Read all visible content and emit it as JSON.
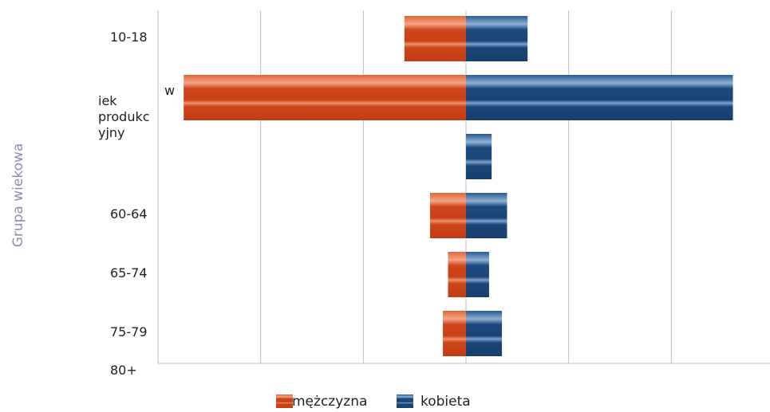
{
  "chart_data": {
    "type": "bar",
    "orientation": "horizontal",
    "stacking": "diverging",
    "title": "",
    "xlabel": "",
    "ylabel": "Grupa wiekowa",
    "categories": [
      "10-18",
      "wiek produkcyjny",
      "",
      "60-64",
      "65-74",
      "75-79"
    ],
    "category_label_lines": [
      [
        "10-18"
      ],
      [
        "w",
        "iek",
        "produkc",
        "yjny"
      ],
      [],
      [
        "60-64"
      ],
      [
        "65-74"
      ],
      [
        "75-79"
      ]
    ],
    "bottom_label": "80+",
    "series": [
      {
        "name": "mężczyzna",
        "color": "#d0461c",
        "values": [
          -1.2,
          -5.5,
          0,
          -0.7,
          -0.35,
          -0.45
        ]
      },
      {
        "name": "kobieta",
        "color": "#1d4a7e",
        "values": [
          1.2,
          5.2,
          0.5,
          0.8,
          0.45,
          0.7
        ]
      }
    ],
    "xlim": [
      -6,
      6
    ],
    "x_gridlines": [
      -6,
      -4,
      -2,
      0,
      2,
      4,
      6
    ],
    "grid": true,
    "legend_position": "bottom"
  }
}
